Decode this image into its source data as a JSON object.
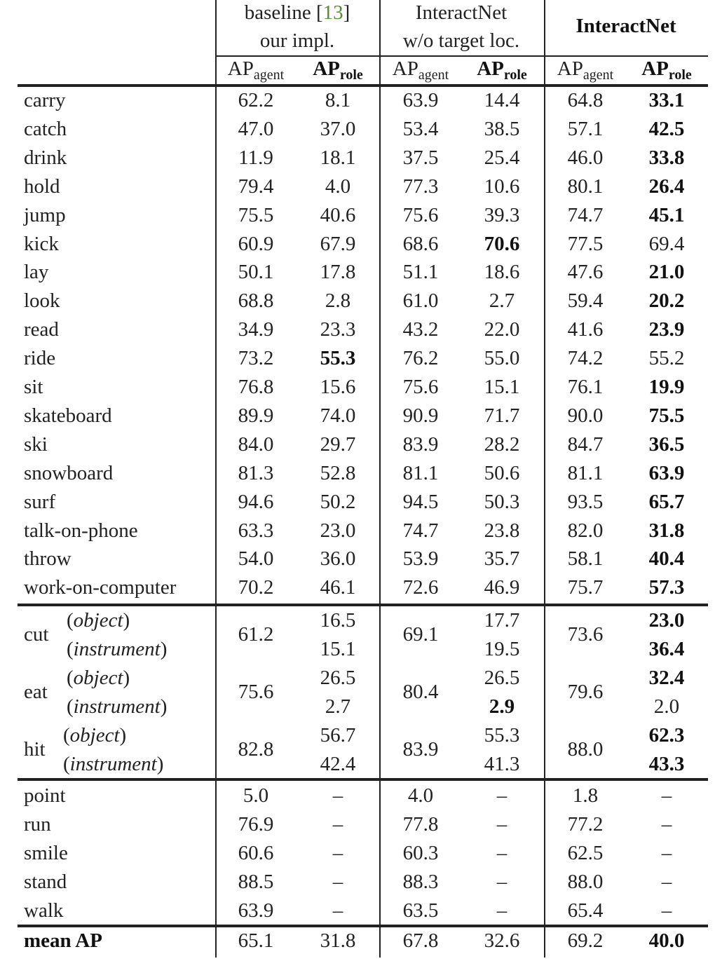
{
  "header": {
    "groups": [
      {
        "line1": "baseline [",
        "cite": "13",
        "line1_end": "]",
        "line2": "our impl."
      },
      {
        "line1": "InteractNet",
        "line2": "w/o target loc."
      },
      {
        "line1": "InteractNet",
        "bold": true
      }
    ],
    "sub": {
      "ap": "AP",
      "agent": "agent",
      "role": "role"
    }
  },
  "rows": [
    {
      "name": "carry",
      "v": [
        "62.2",
        "8.1",
        "63.9",
        "14.4",
        "64.8",
        "33.1"
      ],
      "bold": [
        5
      ]
    },
    {
      "name": "catch",
      "v": [
        "47.0",
        "37.0",
        "53.4",
        "38.5",
        "57.1",
        "42.5"
      ],
      "bold": [
        5
      ]
    },
    {
      "name": "drink",
      "v": [
        "11.9",
        "18.1",
        "37.5",
        "25.4",
        "46.0",
        "33.8"
      ],
      "bold": [
        5
      ]
    },
    {
      "name": "hold",
      "v": [
        "79.4",
        "4.0",
        "77.3",
        "10.6",
        "80.1",
        "26.4"
      ],
      "bold": [
        5
      ]
    },
    {
      "name": "jump",
      "v": [
        "75.5",
        "40.6",
        "75.6",
        "39.3",
        "74.7",
        "45.1"
      ],
      "bold": [
        5
      ]
    },
    {
      "name": "kick",
      "v": [
        "60.9",
        "67.9",
        "68.6",
        "70.6",
        "77.5",
        "69.4"
      ],
      "bold": [
        3
      ]
    },
    {
      "name": "lay",
      "v": [
        "50.1",
        "17.8",
        "51.1",
        "18.6",
        "47.6",
        "21.0"
      ],
      "bold": [
        5
      ]
    },
    {
      "name": "look",
      "v": [
        "68.8",
        "2.8",
        "61.0",
        "2.7",
        "59.4",
        "20.2"
      ],
      "bold": [
        5
      ]
    },
    {
      "name": "read",
      "v": [
        "34.9",
        "23.3",
        "43.2",
        "22.0",
        "41.6",
        "23.9"
      ],
      "bold": [
        5
      ]
    },
    {
      "name": "ride",
      "v": [
        "73.2",
        "55.3",
        "76.2",
        "55.0",
        "74.2",
        "55.2"
      ],
      "bold": [
        1
      ]
    },
    {
      "name": "sit",
      "v": [
        "76.8",
        "15.6",
        "75.6",
        "15.1",
        "76.1",
        "19.9"
      ],
      "bold": [
        5
      ]
    },
    {
      "name": "skateboard",
      "v": [
        "89.9",
        "74.0",
        "90.9",
        "71.7",
        "90.0",
        "75.5"
      ],
      "bold": [
        5
      ]
    },
    {
      "name": "ski",
      "v": [
        "84.0",
        "29.7",
        "83.9",
        "28.2",
        "84.7",
        "36.5"
      ],
      "bold": [
        5
      ]
    },
    {
      "name": "snowboard",
      "v": [
        "81.3",
        "52.8",
        "81.1",
        "50.6",
        "81.1",
        "63.9"
      ],
      "bold": [
        5
      ]
    },
    {
      "name": "surf",
      "v": [
        "94.6",
        "50.2",
        "94.5",
        "50.3",
        "93.5",
        "65.7"
      ],
      "bold": [
        5
      ]
    },
    {
      "name": "talk-on-phone",
      "v": [
        "63.3",
        "23.0",
        "74.7",
        "23.8",
        "82.0",
        "31.8"
      ],
      "bold": [
        5
      ]
    },
    {
      "name": "throw",
      "v": [
        "54.0",
        "36.0",
        "53.9",
        "35.7",
        "58.1",
        "40.4"
      ],
      "bold": [
        5
      ]
    },
    {
      "name": "work-on-computer",
      "v": [
        "70.2",
        "46.1",
        "72.6",
        "46.9",
        "75.7",
        "57.3"
      ],
      "bold": [
        5
      ]
    }
  ],
  "role_rows": [
    {
      "name": "cut",
      "agent": [
        "61.2",
        "69.1",
        "73.6"
      ],
      "roles": [
        {
          "role": "object",
          "v": [
            "16.5",
            "17.7",
            "23.0"
          ],
          "bold": [
            2
          ]
        },
        {
          "role": "instrument",
          "v": [
            "15.1",
            "19.5",
            "36.4"
          ],
          "bold": [
            2
          ]
        }
      ]
    },
    {
      "name": "eat",
      "agent": [
        "75.6",
        "80.4",
        "79.6"
      ],
      "roles": [
        {
          "role": "object",
          "v": [
            "26.5",
            "26.5",
            "32.4"
          ],
          "bold": [
            2
          ]
        },
        {
          "role": "instrument",
          "v": [
            "2.7",
            "2.9",
            "2.0"
          ],
          "bold": [
            1
          ]
        }
      ]
    },
    {
      "name": "hit",
      "agent": [
        "82.8",
        "83.9",
        "88.0"
      ],
      "roles": [
        {
          "role": "object",
          "v": [
            "56.7",
            "55.3",
            "62.3"
          ],
          "bold": [
            2
          ]
        },
        {
          "role": "instrument",
          "v": [
            "42.4",
            "41.3",
            "43.3"
          ],
          "bold": [
            2
          ]
        }
      ]
    }
  ],
  "agent_only_rows": [
    {
      "name": "point",
      "v": [
        "5.0",
        "–",
        "4.0",
        "–",
        "1.8",
        "–"
      ]
    },
    {
      "name": "run",
      "v": [
        "76.9",
        "–",
        "77.8",
        "–",
        "77.2",
        "–"
      ]
    },
    {
      "name": "smile",
      "v": [
        "60.6",
        "–",
        "60.3",
        "–",
        "62.5",
        "–"
      ]
    },
    {
      "name": "stand",
      "v": [
        "88.5",
        "–",
        "88.3",
        "–",
        "88.0",
        "–"
      ]
    },
    {
      "name": "walk",
      "v": [
        "63.9",
        "–",
        "63.5",
        "–",
        "65.4",
        "–"
      ]
    }
  ],
  "mean": {
    "name": "mean AP",
    "v": [
      "65.1",
      "31.8",
      "67.8",
      "32.6",
      "69.2",
      "40.0"
    ],
    "bold": [
      5
    ]
  }
}
